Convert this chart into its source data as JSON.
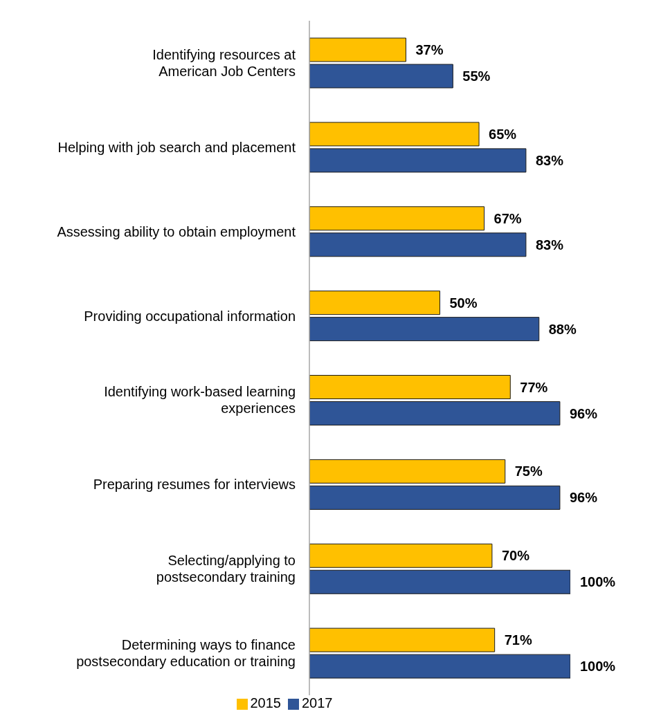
{
  "chart_data": {
    "type": "bar",
    "orientation": "horizontal",
    "categories": [
      "Identifying resources at\nAmerican Job Centers",
      "Helping with job search and placement",
      "Assessing ability to obtain employment",
      "Providing occupational information",
      "Identifying work-based learning\nexperiences",
      "Preparing resumes for interviews",
      "Selecting/applying to\npostsecondary training",
      "Determining ways to finance\npostsecondary education or training"
    ],
    "series": [
      {
        "name": "2015",
        "color": "#ffc000",
        "values": [
          37,
          65,
          67,
          50,
          77,
          75,
          70,
          71
        ],
        "value_labels": [
          "37%",
          "65%",
          "67%",
          "50%",
          "77%",
          "75%",
          "70%",
          "71%"
        ]
      },
      {
        "name": "2017",
        "color": "#2f5597",
        "values": [
          55,
          83,
          83,
          88,
          96,
          96,
          100,
          100
        ],
        "value_labels": [
          "55%",
          "83%",
          "83%",
          "88%",
          "96%",
          "96%",
          "100%",
          "100%"
        ]
      }
    ],
    "tick_labels": "y",
    "legend": "bottom"
  }
}
